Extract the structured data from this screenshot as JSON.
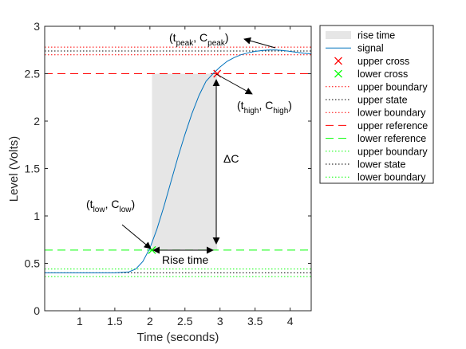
{
  "chart_data": {
    "type": "line",
    "xlabel": "Time (seconds)",
    "ylabel": "Level (Volts)",
    "xlim": [
      0.5,
      4.3
    ],
    "ylim": [
      0,
      3
    ],
    "xticks": [
      1,
      1.5,
      2,
      2.5,
      3,
      3.5,
      4
    ],
    "yticks": [
      0,
      0.5,
      1,
      1.5,
      2,
      2.5,
      3
    ],
    "grid": false,
    "legend_position": "outside-right",
    "series": [
      {
        "name": "signal",
        "color": "#0072BD",
        "x": [
          0.5,
          1.0,
          1.5,
          1.7,
          1.8,
          1.9,
          2.0,
          2.1,
          2.2,
          2.3,
          2.4,
          2.5,
          2.6,
          2.7,
          2.8,
          2.9,
          3.0,
          3.1,
          3.2,
          3.3,
          3.4,
          3.5,
          3.6,
          3.7,
          3.8,
          3.9,
          4.0,
          4.1,
          4.2,
          4.3
        ],
        "y": [
          0.4,
          0.4,
          0.4,
          0.41,
          0.44,
          0.52,
          0.66,
          0.86,
          1.1,
          1.36,
          1.62,
          1.86,
          2.08,
          2.27,
          2.42,
          2.5,
          2.57,
          2.63,
          2.67,
          2.7,
          2.72,
          2.735,
          2.745,
          2.75,
          2.75,
          2.745,
          2.735,
          2.725,
          2.715,
          2.71
        ]
      }
    ],
    "rise_time_region": {
      "label": "rise time",
      "x_start": 2.03,
      "x_end": 2.96,
      "color": "#e6e6e6"
    },
    "crossings": {
      "upper_cross": {
        "name": "upper cross",
        "x": 2.96,
        "y": 2.5,
        "color": "#ff0000"
      },
      "lower_cross": {
        "name": "lower cross",
        "x": 2.03,
        "y": 0.64,
        "color": "#00ff00"
      }
    },
    "reference_lines": [
      {
        "name": "upper boundary",
        "y": 2.78,
        "style": "dotted",
        "color": "#ff0000"
      },
      {
        "name": "upper state",
        "y": 2.74,
        "style": "dotted",
        "color": "#000000"
      },
      {
        "name": "lower boundary",
        "y": 2.7,
        "style": "dotted",
        "color": "#ff0000"
      },
      {
        "name": "upper reference",
        "y": 2.5,
        "style": "dashed",
        "color": "#ff0000"
      },
      {
        "name": "lower reference",
        "y": 0.64,
        "style": "dashed",
        "color": "#00ff00"
      },
      {
        "name": "upper boundary",
        "y": 0.44,
        "style": "dotted",
        "color": "#00ff00"
      },
      {
        "name": "lower state",
        "y": 0.4,
        "style": "dotted",
        "color": "#000000"
      },
      {
        "name": "lower boundary",
        "y": 0.36,
        "style": "dotted",
        "color": "#00ff00"
      }
    ],
    "legend_entries": [
      {
        "label": "rise time",
        "kind": "patch",
        "color": "#e6e6e6"
      },
      {
        "label": "signal",
        "kind": "line",
        "color": "#0072BD"
      },
      {
        "label": "upper cross",
        "kind": "marker",
        "color": "#ff0000"
      },
      {
        "label": "lower cross",
        "kind": "marker",
        "color": "#00ff00"
      },
      {
        "label": "upper boundary",
        "kind": "dotted",
        "color": "#ff0000"
      },
      {
        "label": "upper state",
        "kind": "dotted",
        "color": "#000000"
      },
      {
        "label": "lower boundary",
        "kind": "dotted",
        "color": "#ff0000"
      },
      {
        "label": "upper reference",
        "kind": "dashed",
        "color": "#ff0000"
      },
      {
        "label": "lower reference",
        "kind": "dashed",
        "color": "#00ff00"
      },
      {
        "label": "upper boundary",
        "kind": "dotted",
        "color": "#00ff00"
      },
      {
        "label": "lower state",
        "kind": "dotted",
        "color": "#000000"
      },
      {
        "label": "lower boundary",
        "kind": "dotted",
        "color": "#00ff00"
      }
    ],
    "annotations": {
      "peak": {
        "t": "peak",
        "c": "peak"
      },
      "high": {
        "t": "high",
        "c": "high"
      },
      "low": {
        "t": "low",
        "c": "low"
      },
      "delta_c": "ΔC",
      "rise_time": "Rise time"
    }
  }
}
